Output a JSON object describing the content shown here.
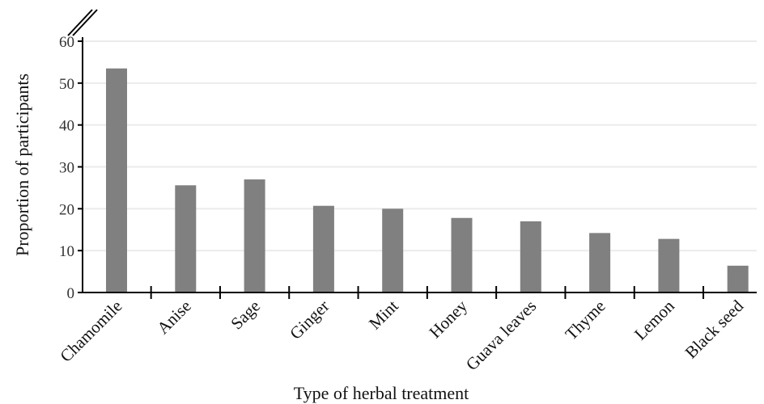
{
  "chart_data": {
    "type": "bar",
    "categories": [
      "Chamomile",
      "Anise",
      "Sage",
      "Ginger",
      "Mint",
      "Honey",
      "Guava leaves",
      "Thyme",
      "Lemon",
      "Black seed"
    ],
    "values": [
      53.5,
      25.6,
      27.0,
      20.7,
      20.0,
      17.8,
      17.0,
      14.2,
      12.8,
      6.4
    ],
    "xlabel": "Type of herbal treatment",
    "ylabel": "Proportion of participants",
    "ylim": [
      0,
      60
    ],
    "yticks": [
      0,
      10,
      20,
      30,
      40,
      50,
      60
    ],
    "grid": true,
    "axis_break": true,
    "bar_color": "#808080",
    "grid_color": "#ebebeb"
  }
}
